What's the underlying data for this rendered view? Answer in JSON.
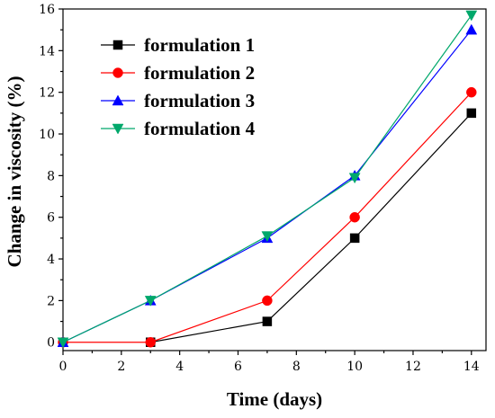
{
  "chart_data": {
    "type": "line",
    "xlabel": "Time (days)",
    "ylabel": "Change in viscosity (%)",
    "xlim": [
      0,
      14.5
    ],
    "ylim": [
      -0.4,
      16
    ],
    "xticks": [
      0,
      2,
      4,
      6,
      8,
      10,
      12,
      14
    ],
    "yticks": [
      0,
      2,
      4,
      6,
      8,
      10,
      12,
      14,
      16
    ],
    "legend_position": "top-left",
    "grid": false,
    "series": [
      {
        "name": "formulation 1",
        "color": "#000000",
        "marker": "square",
        "x": [
          3,
          7,
          10,
          14
        ],
        "y": [
          0,
          1,
          5,
          11
        ]
      },
      {
        "name": "formulation 2",
        "color": "#ff0000",
        "marker": "circle",
        "x": [
          0,
          3,
          7,
          10,
          14
        ],
        "y": [
          0,
          0,
          2,
          6,
          12
        ]
      },
      {
        "name": "formulation 3",
        "color": "#0000ff",
        "marker": "triangle-up",
        "x": [
          0,
          3,
          7,
          10,
          14
        ],
        "y": [
          0,
          2,
          5,
          8,
          15
        ]
      },
      {
        "name": "formulation 4",
        "color": "#00a86b",
        "marker": "triangle-down",
        "x": [
          0,
          3,
          7,
          10,
          14
        ],
        "y": [
          0,
          2,
          5.1,
          7.9,
          15.7
        ]
      }
    ]
  }
}
